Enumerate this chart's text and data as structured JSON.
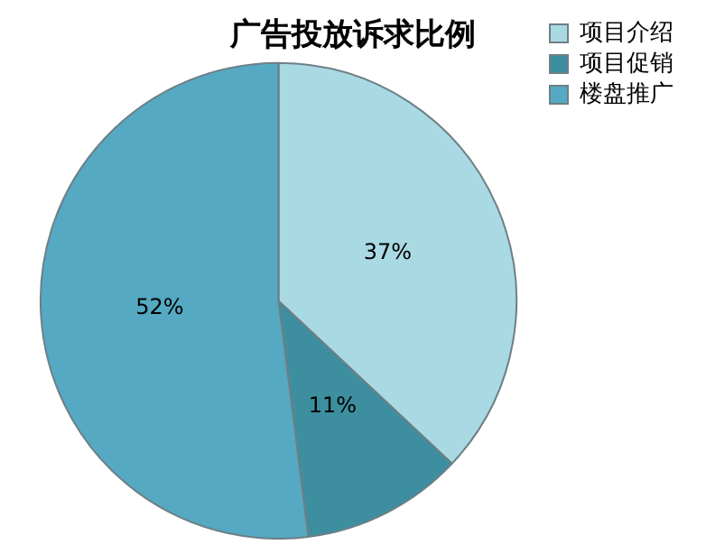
{
  "chart_data": {
    "type": "pie",
    "title": "广告投放诉求比例",
    "categories": [
      "项目介绍",
      "项目促销",
      "楼盘推广"
    ],
    "values": [
      37,
      11,
      52
    ],
    "colors": [
      "#a9d9e3",
      "#3d8fa0",
      "#55a9c2"
    ],
    "value_labels": [
      "37%",
      "11%",
      "52%"
    ],
    "legend": "top right"
  }
}
